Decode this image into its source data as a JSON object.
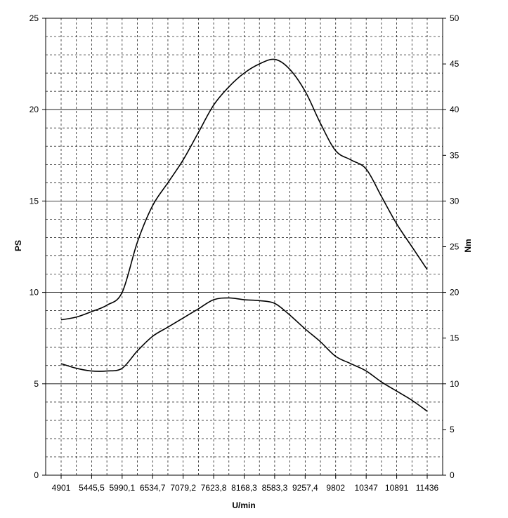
{
  "chart_data": {
    "type": "line",
    "title": "",
    "xlabel": "U/min",
    "ylabel_left": "PS",
    "ylabel_right": "Nm",
    "x_ticks": [
      "4901",
      "5445,5",
      "5990,1",
      "6534,7",
      "7079,2",
      "7623,8",
      "8168,3",
      "8583,3",
      "9257,4",
      "9802",
      "10347",
      "10891",
      "11436"
    ],
    "y_left_ticks": [
      "0",
      "5",
      "10",
      "15",
      "20",
      "25"
    ],
    "y_right_ticks": [
      "0",
      "5",
      "10",
      "15",
      "20",
      "25",
      "30",
      "35",
      "40",
      "45",
      "50"
    ],
    "y_left_range": [
      0,
      25
    ],
    "y_right_range": [
      0,
      50
    ],
    "grid": "major solid, minor dashed",
    "legend": "none",
    "series": [
      {
        "axis": "right",
        "color": "#000000",
        "points": [
          [
            4901,
            17.0
          ],
          [
            5173,
            17.3
          ],
          [
            5445.5,
            17.9
          ],
          [
            5718,
            18.6
          ],
          [
            5990.1,
            20.0
          ],
          [
            6262,
            25.5
          ],
          [
            6534.7,
            29.5
          ],
          [
            6807,
            32.0
          ],
          [
            7079.2,
            34.5
          ],
          [
            7351,
            37.5
          ],
          [
            7623.8,
            40.5
          ],
          [
            7896,
            42.5
          ],
          [
            8168.3,
            44.0
          ],
          [
            8375,
            45.0
          ],
          [
            8583.3,
            45.5
          ],
          [
            8900,
            44.5
          ],
          [
            9257.4,
            42.0
          ],
          [
            9530,
            38.5
          ],
          [
            9802,
            35.5
          ],
          [
            10074,
            34.5
          ],
          [
            10347,
            33.5
          ],
          [
            10619,
            30.5
          ],
          [
            10891,
            27.5
          ],
          [
            11163,
            25.0
          ],
          [
            11436,
            22.5
          ]
        ]
      },
      {
        "axis": "left",
        "color": "#000000",
        "points": [
          [
            4901,
            6.1
          ],
          [
            5173,
            5.85
          ],
          [
            5445.5,
            5.7
          ],
          [
            5718,
            5.7
          ],
          [
            5990.1,
            5.85
          ],
          [
            6262,
            6.8
          ],
          [
            6534.7,
            7.6
          ],
          [
            6807,
            8.1
          ],
          [
            7079.2,
            8.6
          ],
          [
            7351,
            9.1
          ],
          [
            7623.8,
            9.6
          ],
          [
            7896,
            9.7
          ],
          [
            8168.3,
            9.6
          ],
          [
            8375,
            9.55
          ],
          [
            8583.3,
            9.4
          ],
          [
            8900,
            8.8
          ],
          [
            9257.4,
            8.0
          ],
          [
            9530,
            7.3
          ],
          [
            9802,
            6.5
          ],
          [
            10074,
            6.1
          ],
          [
            10347,
            5.7
          ],
          [
            10619,
            5.1
          ],
          [
            10891,
            4.6
          ],
          [
            11163,
            4.1
          ],
          [
            11436,
            3.5
          ]
        ]
      }
    ]
  }
}
